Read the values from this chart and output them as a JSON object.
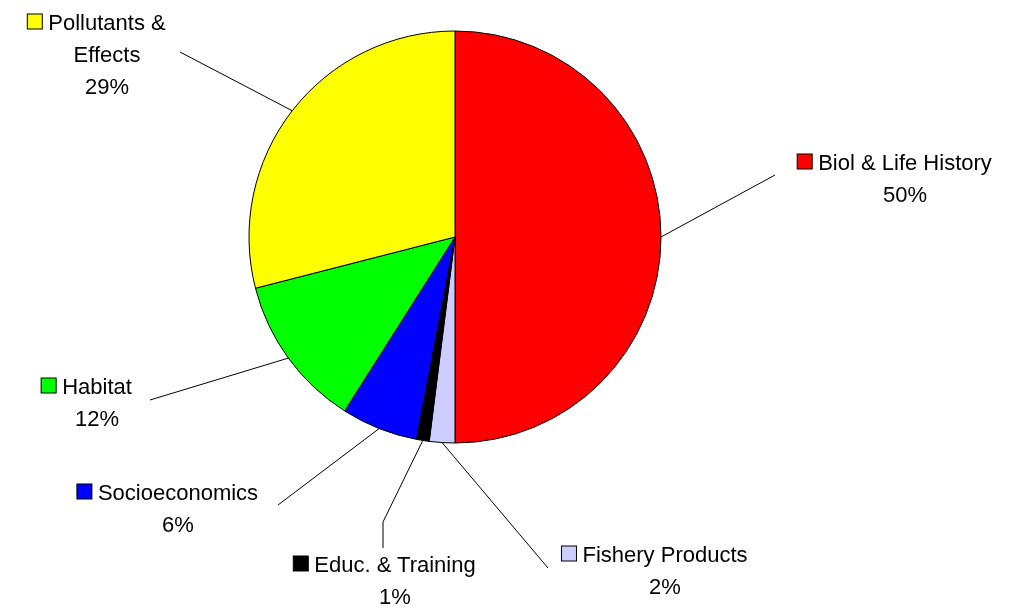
{
  "chart_data": {
    "type": "pie",
    "categories": [
      "Biol & Life History",
      "Fishery Products",
      "Educ. & Training",
      "Socioeconomics",
      "Habitat",
      "Pollutants & Effects"
    ],
    "values": [
      50,
      2,
      1,
      6,
      12,
      29
    ],
    "colors": [
      "#ff0000",
      "#ccccff",
      "#000000",
      "#0000ff",
      "#00ff00",
      "#ffff00"
    ],
    "value_labels": [
      "50%",
      "2%",
      "1%",
      "6%",
      "12%",
      "29%"
    ],
    "legend": "right"
  }
}
